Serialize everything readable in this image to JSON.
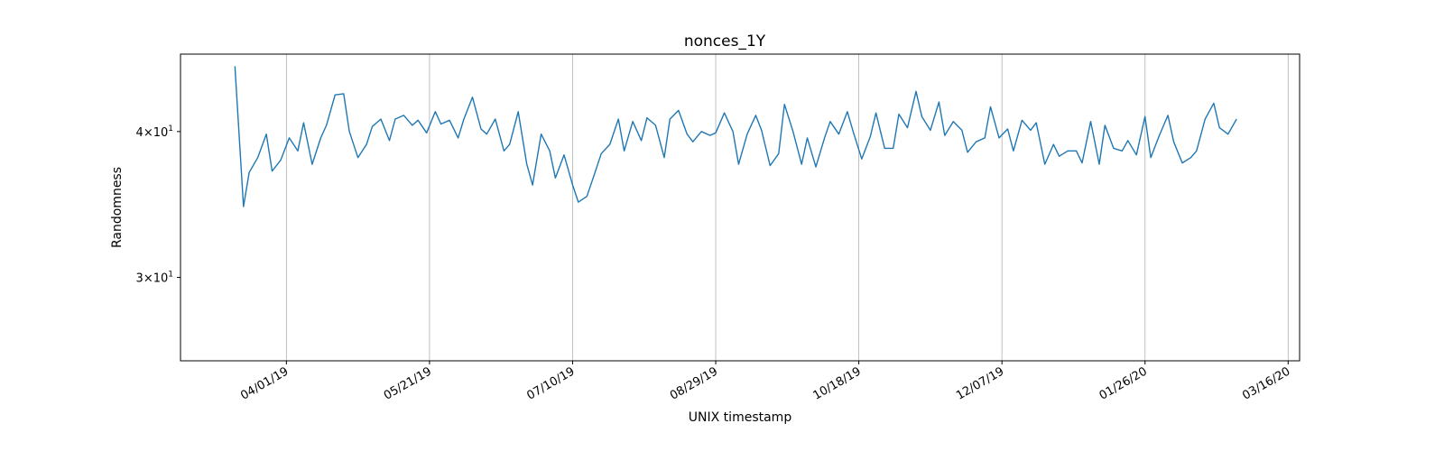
{
  "chart_data": {
    "type": "line",
    "title": "nonces_1Y",
    "xlabel": "UNIX timestamp",
    "ylabel": "Randomness",
    "y_scale": "log",
    "grid": "vertical",
    "x_ticks": [
      "04/01/19",
      "05/21/19",
      "07/10/19",
      "08/29/19",
      "10/18/19",
      "12/07/19",
      "01/26/20",
      "03/16/20"
    ],
    "y_ticks": [
      {
        "base": "3",
        "sup": "1",
        "value": 30
      },
      {
        "base": "4",
        "sup": "1",
        "value": 40
      }
    ],
    "x_range": [
      "2019-02-23",
      "2020-03-20"
    ],
    "y_range": [
      25.45,
      46.6
    ],
    "series": [
      {
        "color": "#1f77b4",
        "points": [
          [
            "2019-03-14",
            45.5
          ],
          [
            "2019-03-17",
            34.5
          ],
          [
            "2019-03-19",
            36.9
          ],
          [
            "2019-03-22",
            38.0
          ],
          [
            "2019-03-25",
            39.8
          ],
          [
            "2019-03-27",
            37.0
          ],
          [
            "2019-03-30",
            37.8
          ],
          [
            "2019-04-02",
            39.5
          ],
          [
            "2019-04-05",
            38.5
          ],
          [
            "2019-04-07",
            40.7
          ],
          [
            "2019-04-10",
            37.5
          ],
          [
            "2019-04-13",
            39.5
          ],
          [
            "2019-04-15",
            40.5
          ],
          [
            "2019-04-18",
            43.0
          ],
          [
            "2019-04-21",
            43.1
          ],
          [
            "2019-04-23",
            40.0
          ],
          [
            "2019-04-26",
            38.0
          ],
          [
            "2019-04-29",
            39.0
          ],
          [
            "2019-05-01",
            40.4
          ],
          [
            "2019-05-04",
            41.0
          ],
          [
            "2019-05-07",
            39.3
          ],
          [
            "2019-05-09",
            41.0
          ],
          [
            "2019-05-12",
            41.3
          ],
          [
            "2019-05-15",
            40.5
          ],
          [
            "2019-05-17",
            40.9
          ],
          [
            "2019-05-20",
            39.9
          ],
          [
            "2019-05-23",
            41.6
          ],
          [
            "2019-05-25",
            40.6
          ],
          [
            "2019-05-28",
            40.9
          ],
          [
            "2019-05-31",
            39.5
          ],
          [
            "2019-06-02",
            41.0
          ],
          [
            "2019-06-05",
            42.8
          ],
          [
            "2019-06-08",
            40.2
          ],
          [
            "2019-06-10",
            39.8
          ],
          [
            "2019-06-13",
            41.0
          ],
          [
            "2019-06-16",
            38.5
          ],
          [
            "2019-06-18",
            39.0
          ],
          [
            "2019-06-21",
            41.6
          ],
          [
            "2019-06-24",
            37.5
          ],
          [
            "2019-06-26",
            36.0
          ],
          [
            "2019-06-29",
            39.8
          ],
          [
            "2019-07-02",
            38.5
          ],
          [
            "2019-07-04",
            36.5
          ],
          [
            "2019-07-07",
            38.2
          ],
          [
            "2019-07-10",
            36.0
          ],
          [
            "2019-07-12",
            34.8
          ],
          [
            "2019-07-15",
            35.2
          ],
          [
            "2019-07-18",
            37.0
          ],
          [
            "2019-07-20",
            38.3
          ],
          [
            "2019-07-23",
            39.0
          ],
          [
            "2019-07-26",
            41.0
          ],
          [
            "2019-07-28",
            38.5
          ],
          [
            "2019-07-31",
            40.8
          ],
          [
            "2019-08-03",
            39.3
          ],
          [
            "2019-08-05",
            41.1
          ],
          [
            "2019-08-08",
            40.5
          ],
          [
            "2019-08-11",
            38.0
          ],
          [
            "2019-08-13",
            41.0
          ],
          [
            "2019-08-16",
            41.7
          ],
          [
            "2019-08-19",
            39.8
          ],
          [
            "2019-08-21",
            39.2
          ],
          [
            "2019-08-24",
            40.0
          ],
          [
            "2019-08-27",
            39.7
          ],
          [
            "2019-08-29",
            39.9
          ],
          [
            "2019-09-01",
            41.5
          ],
          [
            "2019-09-04",
            40.0
          ],
          [
            "2019-09-06",
            37.5
          ],
          [
            "2019-09-09",
            39.8
          ],
          [
            "2019-09-12",
            41.3
          ],
          [
            "2019-09-14",
            40.1
          ],
          [
            "2019-09-17",
            37.4
          ],
          [
            "2019-09-20",
            38.3
          ],
          [
            "2019-09-22",
            42.2
          ],
          [
            "2019-09-25",
            40.0
          ],
          [
            "2019-09-28",
            37.5
          ],
          [
            "2019-09-30",
            39.5
          ],
          [
            "2019-10-03",
            37.3
          ],
          [
            "2019-10-06",
            39.5
          ],
          [
            "2019-10-08",
            40.8
          ],
          [
            "2019-10-11",
            39.8
          ],
          [
            "2019-10-14",
            41.6
          ],
          [
            "2019-10-16",
            40.0
          ],
          [
            "2019-10-19",
            37.9
          ],
          [
            "2019-10-22",
            39.6
          ],
          [
            "2019-10-24",
            41.5
          ],
          [
            "2019-10-27",
            38.7
          ],
          [
            "2019-10-30",
            38.7
          ],
          [
            "2019-11-01",
            41.4
          ],
          [
            "2019-11-04",
            40.3
          ],
          [
            "2019-11-07",
            43.3
          ],
          [
            "2019-11-09",
            41.2
          ],
          [
            "2019-11-12",
            40.1
          ],
          [
            "2019-11-15",
            42.4
          ],
          [
            "2019-11-17",
            39.7
          ],
          [
            "2019-11-20",
            40.8
          ],
          [
            "2019-11-23",
            40.1
          ],
          [
            "2019-11-25",
            38.4
          ],
          [
            "2019-11-28",
            39.2
          ],
          [
            "2019-12-01",
            39.5
          ],
          [
            "2019-12-03",
            42.0
          ],
          [
            "2019-12-06",
            39.5
          ],
          [
            "2019-12-09",
            40.2
          ],
          [
            "2019-12-11",
            38.5
          ],
          [
            "2019-12-14",
            40.9
          ],
          [
            "2019-12-17",
            40.1
          ],
          [
            "2019-12-19",
            40.7
          ],
          [
            "2019-12-22",
            37.5
          ],
          [
            "2019-12-25",
            39.0
          ],
          [
            "2019-12-27",
            38.1
          ],
          [
            "2019-12-30",
            38.5
          ],
          [
            "2020-01-02",
            38.5
          ],
          [
            "2020-01-04",
            37.6
          ],
          [
            "2020-01-07",
            40.8
          ],
          [
            "2020-01-10",
            37.5
          ],
          [
            "2020-01-12",
            40.5
          ],
          [
            "2020-01-15",
            38.7
          ],
          [
            "2020-01-18",
            38.5
          ],
          [
            "2020-01-20",
            39.3
          ],
          [
            "2020-01-23",
            38.2
          ],
          [
            "2020-01-26",
            41.2
          ],
          [
            "2020-01-28",
            38.0
          ],
          [
            "2020-01-31",
            39.7
          ],
          [
            "2020-02-03",
            41.3
          ],
          [
            "2020-02-05",
            39.2
          ],
          [
            "2020-02-08",
            37.6
          ],
          [
            "2020-02-11",
            38.0
          ],
          [
            "2020-02-13",
            38.5
          ],
          [
            "2020-02-16",
            41.0
          ],
          [
            "2020-02-19",
            42.3
          ],
          [
            "2020-02-21",
            40.3
          ],
          [
            "2020-02-24",
            39.8
          ],
          [
            "2020-02-27",
            41.0
          ]
        ]
      }
    ]
  }
}
